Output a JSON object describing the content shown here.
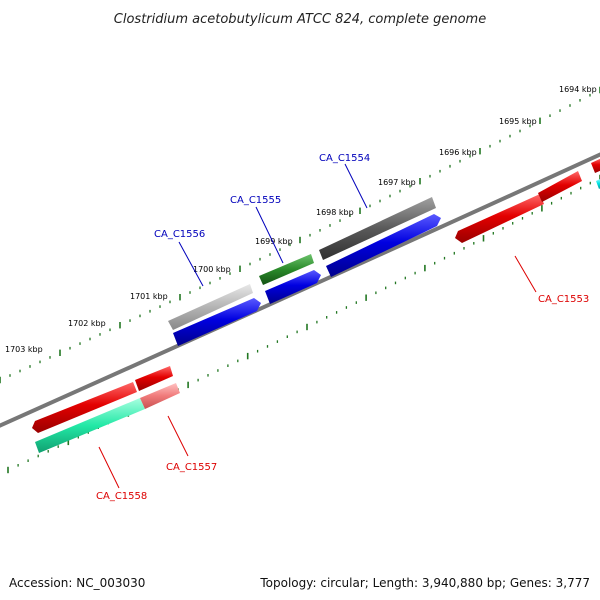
{
  "title": "Clostridium acetobutylicum ATCC 824, complete genome",
  "footer": {
    "accession": "Accession: NC_003030",
    "summary": "Topology: circular; Length: 3,940,880 bp; Genes: 3,777"
  },
  "ticks": [
    {
      "label": "1694 kbp"
    },
    {
      "label": "1695 kbp"
    },
    {
      "label": "1696 kbp"
    },
    {
      "label": "1697 kbp"
    },
    {
      "label": "1698 kbp"
    },
    {
      "label": "1699 kbp"
    },
    {
      "label": "1700 kbp"
    },
    {
      "label": "1701 kbp"
    },
    {
      "label": "1702 kbp"
    },
    {
      "label": "1703 kbp"
    }
  ],
  "gene_labels": [
    {
      "id": "CA_C1553",
      "color": "#dd0000"
    },
    {
      "id": "CA_C1554",
      "color": "#0000bb"
    },
    {
      "id": "CA_C1555",
      "color": "#0000bb"
    },
    {
      "id": "CA_C1556",
      "color": "#0000bb"
    },
    {
      "id": "CA_C1557",
      "color": "#dd0000"
    },
    {
      "id": "CA_C1558",
      "color": "#dd0000"
    }
  ],
  "colors": {
    "backbone": "#777777",
    "tick_marks": "#227722",
    "gene_red": "#e30000",
    "gene_pink": "#f07a7a",
    "gene_blue": "#0000e0",
    "gene_green": "#2a8a2a",
    "gene_dark_gray": "#5a5a5a",
    "gene_light_gray": "#b4b4b4",
    "gene_teal": "#22e8a6",
    "gene_cyan": "#00e5e5"
  }
}
